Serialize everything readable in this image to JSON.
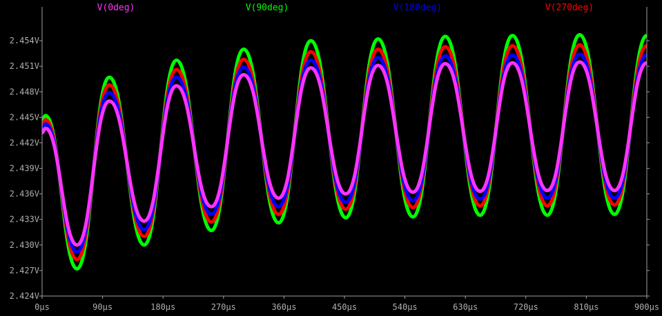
{
  "chart_data": {
    "type": "line",
    "title": "",
    "xlabel": "",
    "ylabel": "",
    "xlim": [
      0,
      900
    ],
    "ylim": [
      2.424,
      2.457
    ],
    "x_ticks": [
      0,
      90,
      180,
      270,
      360,
      450,
      540,
      630,
      720,
      810,
      900
    ],
    "x_tick_labels": [
      "0µs",
      "90µs",
      "180µs",
      "270µs",
      "360µs",
      "450µs",
      "540µs",
      "630µs",
      "720µs",
      "810µs",
      "900µs"
    ],
    "y_ticks": [
      2.424,
      2.427,
      2.43,
      2.433,
      2.436,
      2.439,
      2.442,
      2.445,
      2.448,
      2.451,
      2.454
    ],
    "y_tick_labels": [
      "2.424V",
      "2.427V",
      "2.430V",
      "2.433V",
      "2.436V",
      "2.439V",
      "2.442V",
      "2.445V",
      "2.448V",
      "2.451V",
      "2.454V"
    ],
    "grid": false,
    "legend_position": "top",
    "colors": {
      "background": "#000000",
      "axis": "#a0a0a0",
      "tick_text": "#b0b0b0"
    },
    "series": [
      {
        "name": "V(90deg)",
        "color": "#00ff00",
        "x": [
          0,
          5,
          52,
          100,
          152,
          200,
          252,
          300,
          352,
          400,
          452,
          500,
          552,
          600,
          652,
          700,
          752,
          800,
          852,
          900
        ],
        "y": [
          2.4445,
          2.4452,
          2.4272,
          2.4497,
          2.43,
          2.4517,
          2.4317,
          2.453,
          2.4326,
          2.454,
          2.4332,
          2.4542,
          2.4333,
          2.4545,
          2.4335,
          2.4546,
          2.4335,
          2.4547,
          2.4336,
          2.4546
        ]
      },
      {
        "name": "V(270deg)",
        "color": "#ff0000",
        "x": [
          0,
          5,
          52,
          100,
          152,
          200,
          252,
          300,
          352,
          400,
          452,
          500,
          552,
          600,
          652,
          700,
          752,
          800,
          852,
          900
        ],
        "y": [
          2.444,
          2.4447,
          2.4283,
          2.4488,
          2.431,
          2.4506,
          2.4327,
          2.4518,
          2.4336,
          2.4527,
          2.4342,
          2.453,
          2.4344,
          2.4533,
          2.4346,
          2.4534,
          2.4346,
          2.4535,
          2.4347,
          2.4534
        ]
      },
      {
        "name": "V(180deg)",
        "color": "#0000ff",
        "x": [
          0,
          5,
          52,
          100,
          152,
          200,
          252,
          300,
          352,
          400,
          452,
          500,
          552,
          600,
          652,
          700,
          752,
          800,
          852,
          900
        ],
        "y": [
          2.4436,
          2.4442,
          2.4292,
          2.4479,
          2.4318,
          2.4497,
          2.4336,
          2.4509,
          2.4345,
          2.4517,
          2.435,
          2.452,
          2.4352,
          2.4522,
          2.4354,
          2.4523,
          2.4355,
          2.4524,
          2.4355,
          2.4523
        ]
      },
      {
        "name": "V(0deg)",
        "color": "#ff33ff",
        "x": [
          0,
          5,
          52,
          100,
          152,
          200,
          252,
          300,
          352,
          400,
          452,
          500,
          552,
          600,
          652,
          700,
          752,
          800,
          852,
          900
        ],
        "y": [
          2.4432,
          2.4437,
          2.43,
          2.4469,
          2.4328,
          2.4487,
          2.4345,
          2.45,
          2.4355,
          2.4508,
          2.436,
          2.4511,
          2.4362,
          2.4513,
          2.4363,
          2.4514,
          2.4364,
          2.4515,
          2.4364,
          2.4514
        ]
      }
    ],
    "legend": [
      {
        "name": "V(0deg)",
        "color": "#ff33ff"
      },
      {
        "name": "V(90deg)",
        "color": "#00ff00"
      },
      {
        "name": "V(180deg)",
        "color": "#0000ff"
      },
      {
        "name": "V(270deg)",
        "color": "#ff0000"
      }
    ]
  }
}
